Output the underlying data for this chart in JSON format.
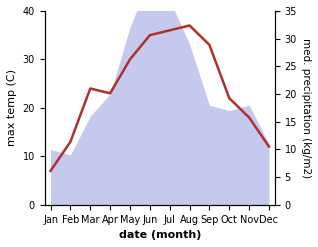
{
  "months": [
    "Jan",
    "Feb",
    "Mar",
    "Apr",
    "May",
    "Jun",
    "Jul",
    "Aug",
    "Sep",
    "Oct",
    "Nov",
    "Dec"
  ],
  "temperature": [
    7,
    13,
    24,
    23,
    30,
    35,
    36,
    37,
    33,
    22,
    18,
    12
  ],
  "precipitation": [
    10,
    9,
    16,
    20,
    32,
    41,
    37,
    29,
    18,
    17,
    18,
    11
  ],
  "temp_ylim": [
    0,
    40
  ],
  "precip_ylim": [
    0,
    35
  ],
  "temp_color": "#b03030",
  "precip_fill_color": "#b0b8e8",
  "precip_fill_alpha": 0.75,
  "ylabel_left": "max temp (C)",
  "ylabel_right": "med. precipitation (kg/m2)",
  "xlabel": "date (month)",
  "label_fontsize": 8,
  "tick_fontsize": 7,
  "background_color": "#ffffff"
}
